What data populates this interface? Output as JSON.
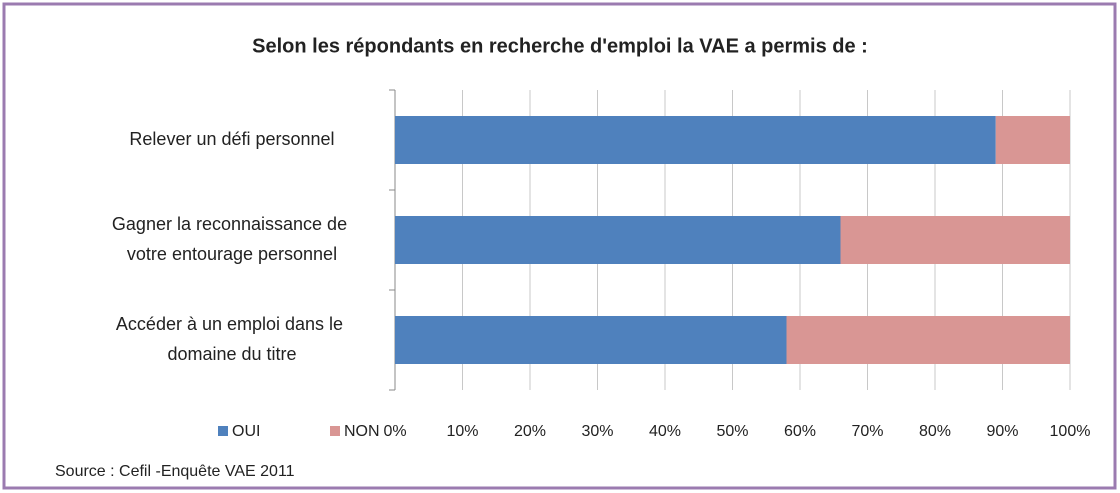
{
  "chart_data": {
    "type": "stacked-barh",
    "title": "Selon les répondants en recherche d'emploi la VAE a permis de :",
    "categories": [
      "Relever un défi personnel",
      "Gagner la reconnaissance de votre entourage personnel",
      "Accéder à un emploi dans le domaine du titre"
    ],
    "series": [
      {
        "name": "OUI",
        "color": "#4f81bd",
        "values": [
          89,
          66,
          58
        ]
      },
      {
        "name": "NON",
        "color": "#d99694",
        "values": [
          11,
          34,
          42
        ]
      }
    ],
    "xlim": [
      0,
      100
    ],
    "xticks": [
      {
        "value": 0,
        "label": "0%"
      },
      {
        "value": 10,
        "label": "10%"
      },
      {
        "value": 20,
        "label": "20%"
      },
      {
        "value": 30,
        "label": "30%"
      },
      {
        "value": 40,
        "label": "40%"
      },
      {
        "value": 50,
        "label": "50%"
      },
      {
        "value": 60,
        "label": "60%"
      },
      {
        "value": 70,
        "label": "70%"
      },
      {
        "value": 80,
        "label": "80%"
      },
      {
        "value": 90,
        "label": "90%"
      },
      {
        "value": 100,
        "label": "100%"
      }
    ],
    "grid": true,
    "legend": "bottom-left",
    "source": "Source : Cefil -Enquête VAE 2011"
  }
}
